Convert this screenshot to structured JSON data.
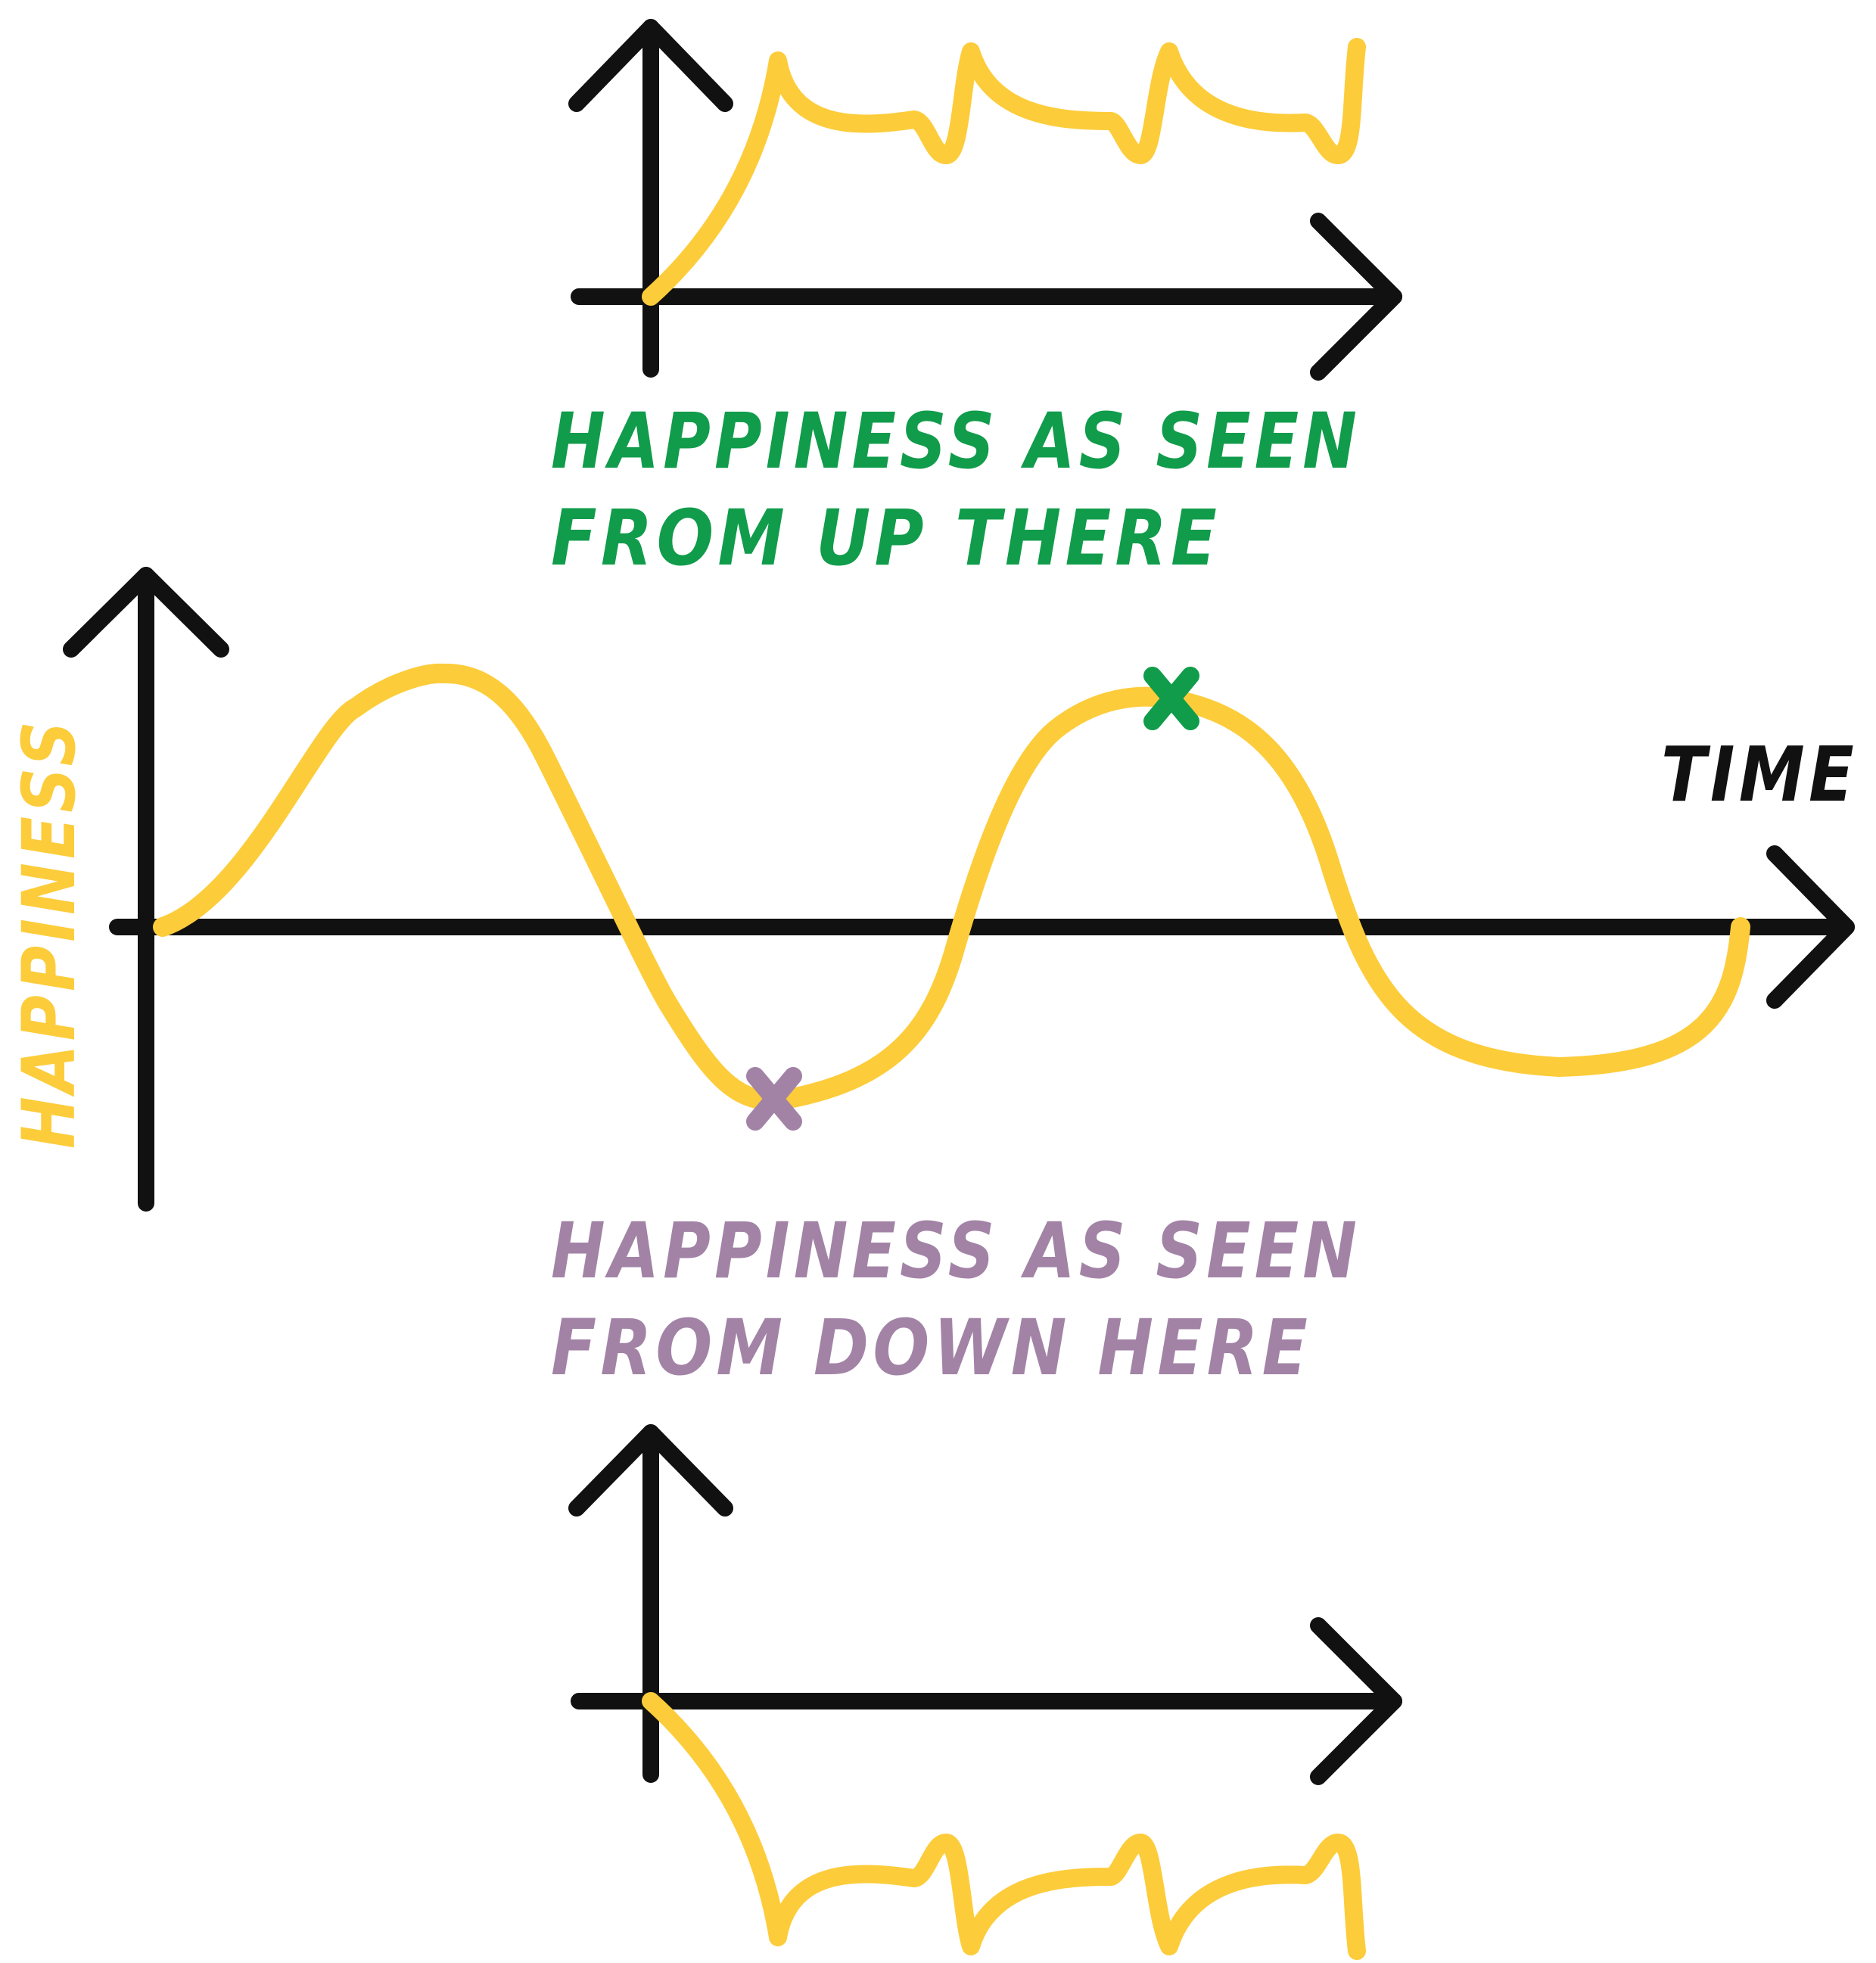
{
  "colors": {
    "axis": "#111111",
    "curve": "#fccc3a",
    "up_there": "#109c4b",
    "down_here": "#a283a6",
    "background": "#ffffff"
  },
  "labels": {
    "y_axis": "HAPPINESS",
    "x_axis": "TIME",
    "up_there_line1": "HAPPINESS AS SEEN",
    "up_there_line2": "FROM UP THERE",
    "down_here_line1": "HAPPINESS AS SEEN",
    "down_here_line2": "FROM DOWN HERE"
  },
  "markers": {
    "peak": "x-mark",
    "trough": "x-mark"
  }
}
